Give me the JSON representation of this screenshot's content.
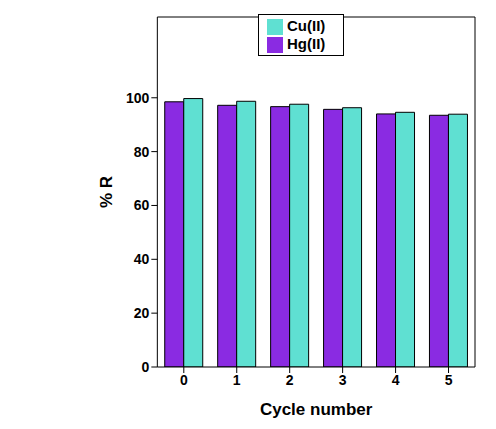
{
  "chart_data": {
    "type": "bar",
    "x_label": "Cycle number",
    "y_label": "% R",
    "categories": [
      "0",
      "1",
      "2",
      "3",
      "4",
      "5"
    ],
    "series": [
      {
        "name": "Hg(II)",
        "color": "#8a2be2",
        "values": [
          98.5,
          97.2,
          96.7,
          95.7,
          94.0,
          93.5
        ]
      },
      {
        "name": "Cu(II)",
        "color": "#5fe0d2",
        "values": [
          99.7,
          98.7,
          97.6,
          96.3,
          94.6,
          93.9
        ]
      }
    ],
    "ylim": [
      0,
      130
    ],
    "yticks": [
      0,
      20,
      40,
      60,
      80,
      100
    ],
    "grid": false,
    "legend": "top"
  }
}
